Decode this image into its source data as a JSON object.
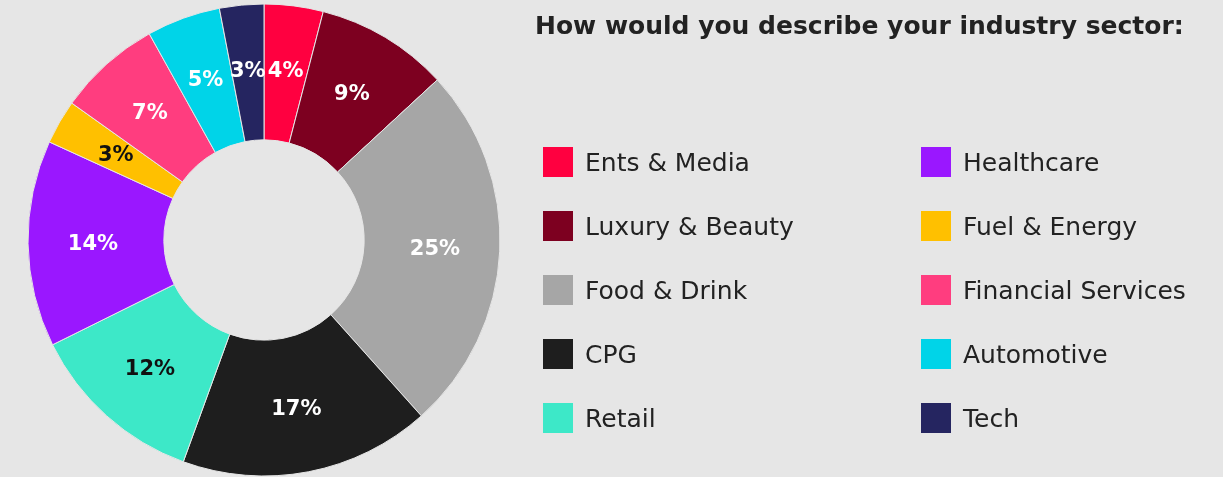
{
  "chart_data": {
    "type": "donut",
    "title": "How would you describe your industry sector:",
    "categories": [
      "Ents & Media",
      "Luxury & Beauty",
      "Food & Drink",
      "CPG",
      "Retail",
      "Healthcare",
      "Fuel & Energy",
      "Financial Services",
      "Automotive",
      "Tech"
    ],
    "values": [
      4,
      9,
      25,
      17,
      12,
      14,
      3,
      7,
      5,
      3
    ],
    "value_labels": [
      "4%",
      "9%",
      "25%",
      "17%",
      "12%",
      "14%",
      "3%",
      "7%",
      "5%",
      "3%"
    ],
    "colors": [
      "#ff0040",
      "#7d0020",
      "#a6a6a6",
      "#1e1e1e",
      "#3de8c8",
      "#9a17ff",
      "#ffc000",
      "#ff3d7f",
      "#00d4e8",
      "#252560"
    ],
    "legend": "right"
  }
}
